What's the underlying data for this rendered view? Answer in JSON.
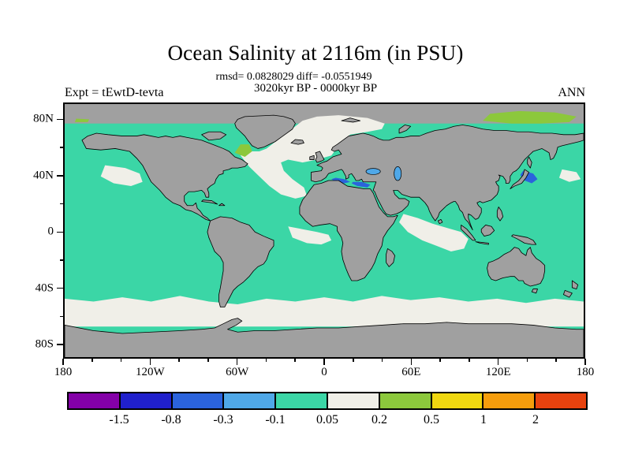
{
  "header": {
    "title": "Ocean Salinity at 2116m (in PSU)",
    "stats_line": "rmsd= 0.0828029 diff= -0.0551949",
    "period_line": "3020kyr BP - 0000kyr BP",
    "experiment_label": "Expt = tEwtD-tevta",
    "season_label": "ANN"
  },
  "chart_data": {
    "type": "heatmap",
    "title": "Ocean Salinity at 2116m (in PSU)",
    "variable": "ocean salinity difference",
    "depth": "2116m",
    "units": "PSU",
    "rmsd": 0.0828029,
    "diff": -0.0551949,
    "comparison": "3020kyr BP - 0000kyr BP",
    "experiment": "tEwtD-tevta",
    "season": "ANN",
    "projection": "equirectangular world map, 90N-90S, 180W-180E",
    "lon_ticks": [
      {
        "value": -180,
        "label": "180"
      },
      {
        "value": -120,
        "label": "120W"
      },
      {
        "value": -60,
        "label": "60W"
      },
      {
        "value": 0,
        "label": "0"
      },
      {
        "value": 60,
        "label": "60E"
      },
      {
        "value": 120,
        "label": "120E"
      },
      {
        "value": 180,
        "label": "180"
      }
    ],
    "lat_ticks": [
      {
        "value": 80,
        "label": "80N"
      },
      {
        "value": 40,
        "label": "40N"
      },
      {
        "value": 0,
        "label": "0"
      },
      {
        "value": -40,
        "label": "40S"
      },
      {
        "value": -80,
        "label": "80S"
      }
    ],
    "colorbar": {
      "levels": [
        -1.5,
        -0.8,
        -0.3,
        -0.1,
        0.05,
        0.2,
        0.5,
        1,
        2
      ],
      "colors": [
        "#8400a8",
        "#2020cc",
        "#2b63dc",
        "#4fa8e8",
        "#3bd6a6",
        "#f0efe8",
        "#8cc83c",
        "#f0d810",
        "#f59d0c",
        "#e8420e"
      ]
    },
    "map_colors": {
      "land": "#a0a0a0",
      "no_data": "#a0a0a0",
      "coastline": "#000000"
    },
    "regions": [
      {
        "area": "Most of the global ocean (Pacific, South Atlantic, Indian)",
        "value_bin": "-0.1 to 0.05",
        "appearance": "teal-green"
      },
      {
        "area": "Circumpolar Southern Ocean belt ~45S-65S",
        "value_bin": "0.05 to 0.2",
        "appearance": "off-white"
      },
      {
        "area": "North Atlantic and Nordic Seas ~35N-80N",
        "value_bin": "0.05 to 0.2",
        "appearance": "off-white"
      },
      {
        "area": "Subtropical NE Atlantic tongue toward NW Africa",
        "value_bin": "0.05 to 0.2",
        "appearance": "off-white"
      },
      {
        "area": "NE Pacific ~150W-125W, 33N-48N",
        "value_bin": "0.05 to 0.2",
        "appearance": "off-white"
      },
      {
        "area": "Equatorial Indian Ocean ~55E-100E",
        "value_bin": "0.05 to 0.2",
        "appearance": "off-white"
      },
      {
        "area": "Gulf of Guinea / eastern equatorial Atlantic",
        "value_bin": "0.05 to 0.2",
        "appearance": "off-white"
      },
      {
        "area": "Labrador Sea",
        "value_bin": "0.2 to 0.5",
        "appearance": "yellow-green"
      },
      {
        "area": "Arctic shelf ~110E-180, 78N-87N",
        "value_bin": "0.2 to 0.5",
        "appearance": "yellow-green"
      },
      {
        "area": "Central and eastern Mediterranean Sea",
        "value_bin": "-0.8 to -0.3",
        "appearance": "blue"
      },
      {
        "area": "NW Pacific off Japan ~35N-44N",
        "value_bin": "-0.8 to -0.3",
        "appearance": "blue"
      },
      {
        "area": "Black Sea and Caspian Sea",
        "value_bin": "-0.3 to -0.1",
        "appearance": "light blue"
      },
      {
        "area": "Arctic Ocean interior and Antarctic margin",
        "value_bin": "no data",
        "appearance": "gray"
      }
    ]
  }
}
